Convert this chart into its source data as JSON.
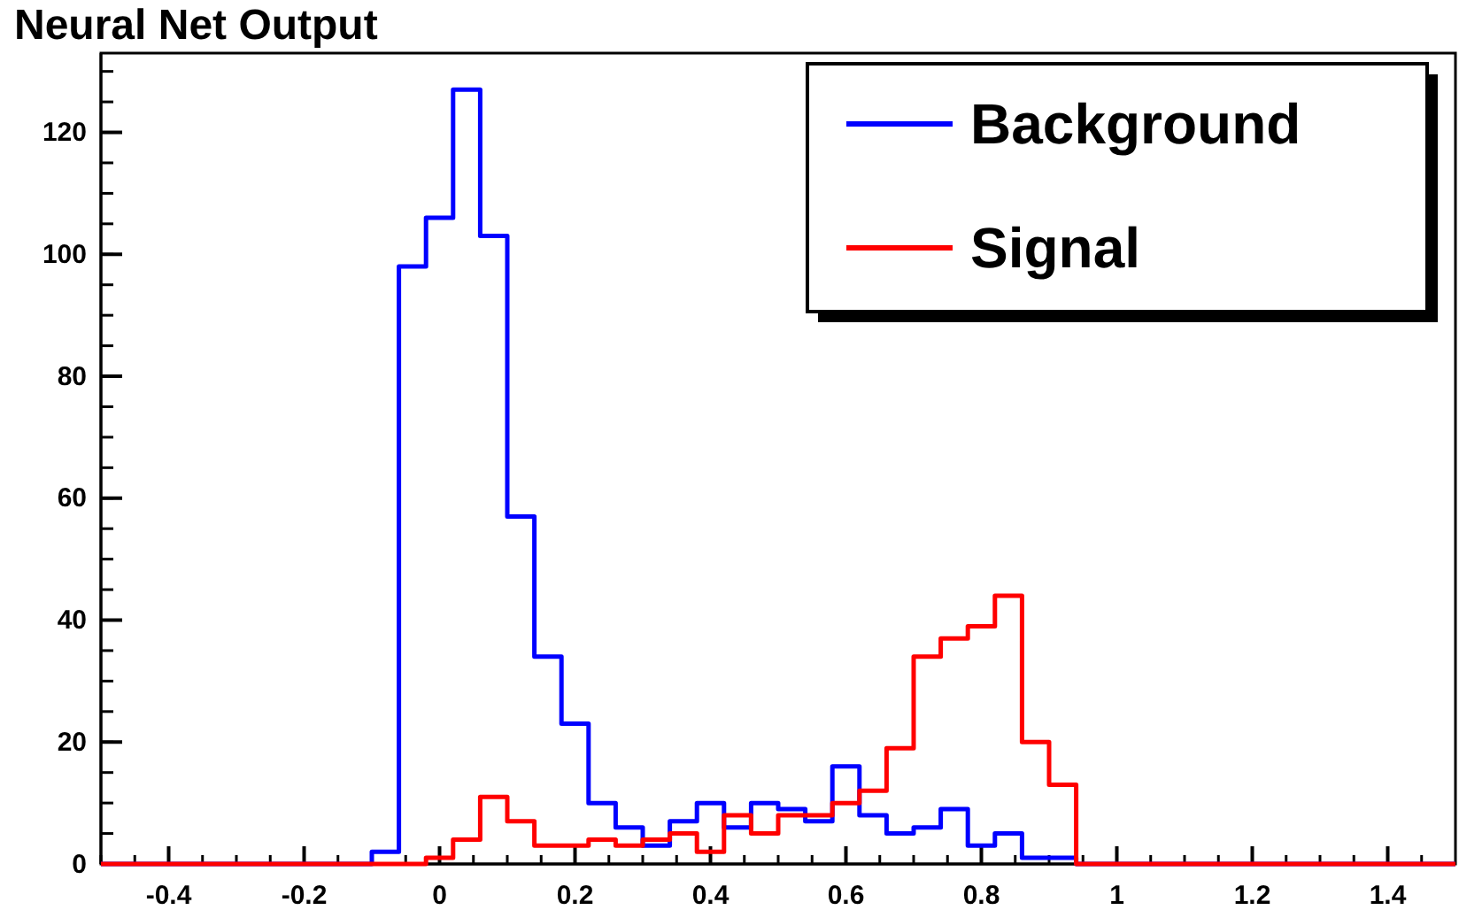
{
  "chart_data": {
    "type": "histogram",
    "title": "Neural Net Output",
    "bins": [
      -0.5,
      -0.1,
      -0.06,
      -0.02,
      0.02,
      0.06,
      0.1,
      0.14,
      0.18,
      0.22,
      0.26,
      0.3,
      0.34,
      0.38,
      0.42,
      0.46,
      0.5,
      0.54,
      0.58,
      0.62,
      0.66,
      0.7,
      0.74,
      0.78,
      0.82,
      0.86,
      0.9,
      0.94,
      1.5
    ],
    "series": [
      {
        "name": "Background",
        "color": "#0000ff",
        "values": [
          0,
          2,
          98,
          106,
          127,
          103,
          57,
          34,
          23,
          10,
          6,
          3,
          7,
          10,
          6,
          10,
          9,
          7,
          16,
          8,
          5,
          6,
          9,
          3,
          5,
          1,
          1,
          0
        ]
      },
      {
        "name": "Signal",
        "color": "#ff0000",
        "values": [
          0,
          0,
          0,
          1,
          4,
          11,
          7,
          3,
          3,
          4,
          3,
          4,
          5,
          2,
          8,
          5,
          8,
          8,
          10,
          12,
          19,
          34,
          37,
          39,
          44,
          20,
          13,
          0
        ]
      }
    ],
    "xlim": [
      -0.5,
      1.5
    ],
    "ylim": [
      0,
      133
    ],
    "xticks": [
      -0.4,
      -0.2,
      0,
      0.2,
      0.4,
      0.6,
      0.8,
      1,
      1.2,
      1.4
    ],
    "yticks": [
      0,
      20,
      40,
      60,
      80,
      100,
      120
    ],
    "legend": "top right",
    "grid": false
  }
}
